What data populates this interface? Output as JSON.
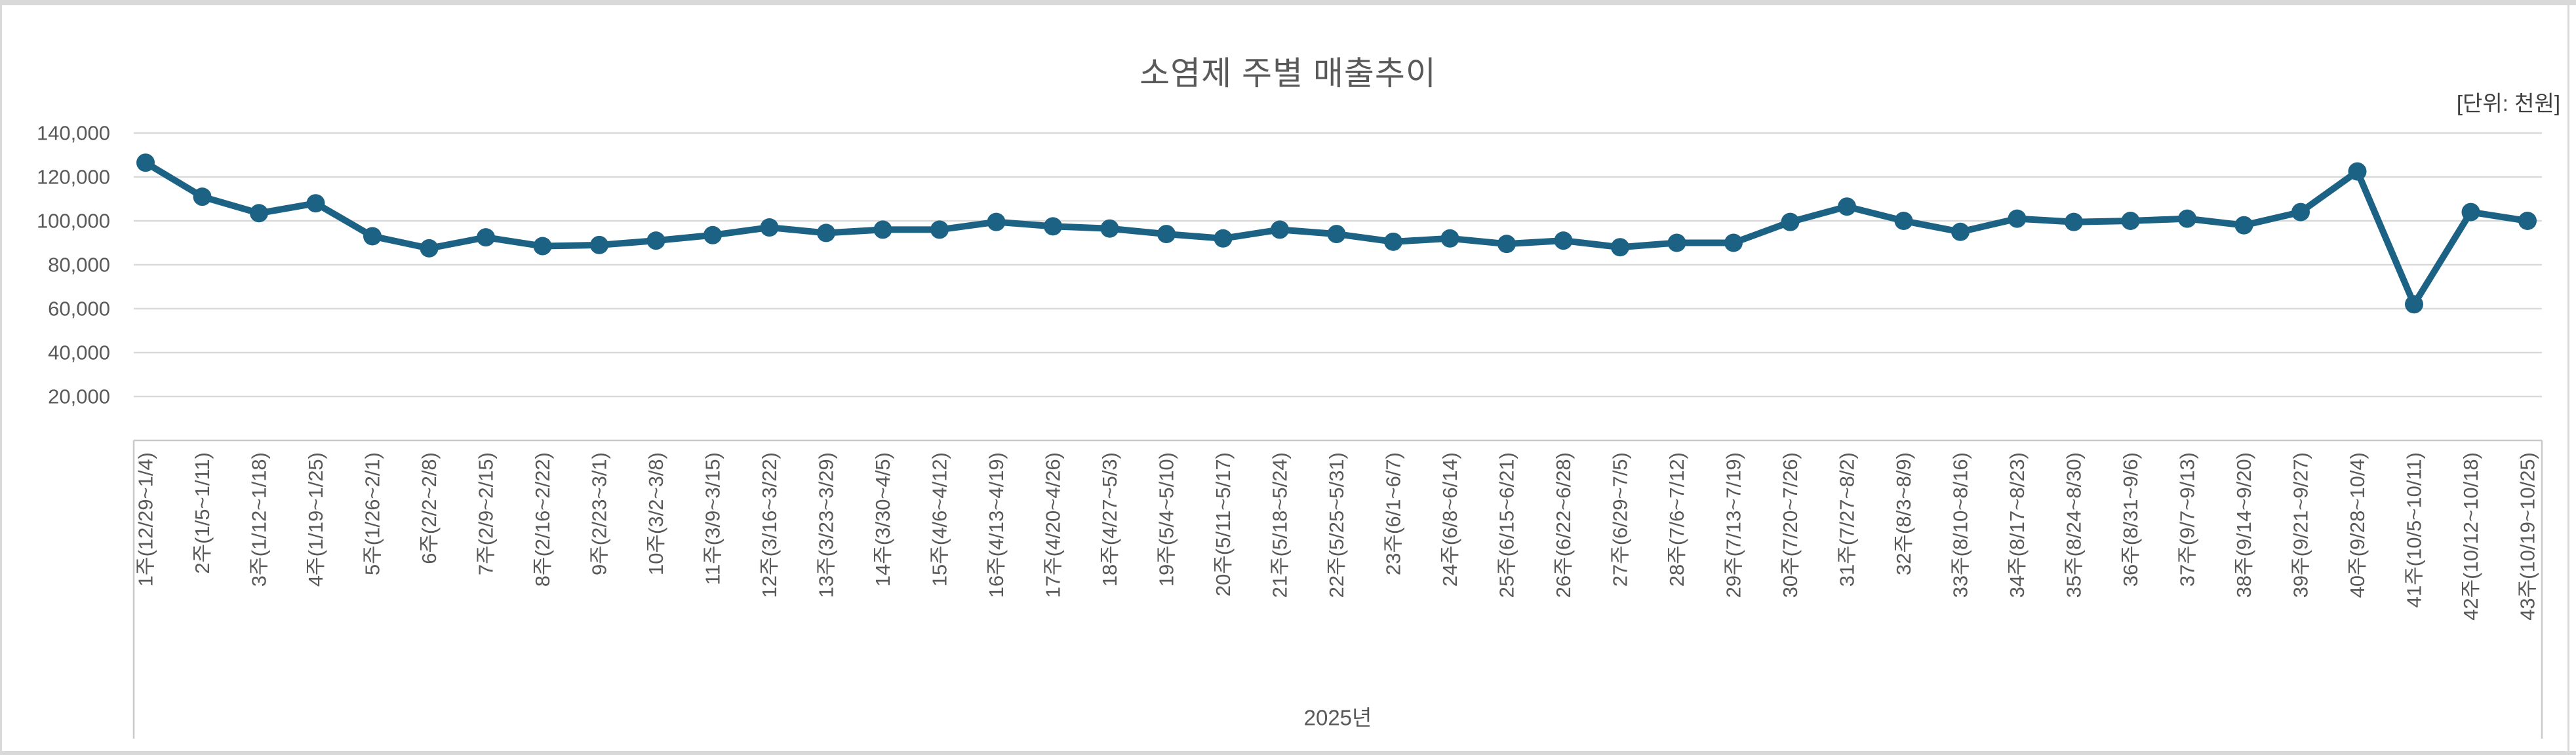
{
  "page": {
    "background": "#ffffff",
    "frame_color": "#d9d9d9"
  },
  "header": {
    "title": "소염제 주별 매출추이",
    "unit_label": "[단위: 천원]"
  },
  "chart_data": {
    "type": "line",
    "title": "소염제 주별 매출추이",
    "unit_note": "[단위: 천원]",
    "x_axis_group_label": "2025년",
    "legend": "none",
    "grid": true,
    "ylim": [
      0,
      150000
    ],
    "grid_range": [
      20000,
      140000
    ],
    "grid_step": 20000,
    "line_color": "#1b6284",
    "grid_color": "#d9d9d9",
    "axis_color": "#c9c9c9",
    "text_color": "#595959",
    "categories": [
      "1주(12/29~1/4)",
      "2주(1/5~1/11)",
      "3주(1/12~1/18)",
      "4주(1/19~1/25)",
      "5주(1/26~2/1)",
      "6주(2/2~2/8)",
      "7주(2/9~2/15)",
      "8주(2/16~2/22)",
      "9주(2/23~3/1)",
      "10주(3/2~3/8)",
      "11주(3/9~3/15)",
      "12주(3/16~3/22)",
      "13주(3/23~3/29)",
      "14주(3/30~4/5)",
      "15주(4/6~4/12)",
      "16주(4/13~4/19)",
      "17주(4/20~4/26)",
      "18주(4/27~5/3)",
      "19주(5/4~5/10)",
      "20주(5/11~5/17)",
      "21주(5/18~5/24)",
      "22주(5/25~5/31)",
      "23주(6/1~6/7)",
      "24주(6/8~6/14)",
      "25주(6/15~6/21)",
      "26주(6/22~6/28)",
      "27주(6/29~7/5)",
      "28주(7/6~7/12)",
      "29주(7/13~7/19)",
      "30주(7/20~7/26)",
      "31주(7/27~8/2)",
      "32주(8/3~8/9)",
      "33주(8/10~8/16)",
      "34주(8/17~8/23)",
      "35주(8/24~8/30)",
      "36주(8/31~9/6)",
      "37주(9/7~9/13)",
      "38주(9/14~9/20)",
      "39주(9/21~9/27)",
      "40주(9/28~10/4)",
      "41주(10/5~10/11)",
      "42주(10/12~10/18)",
      "43주(10/19~10/25)"
    ],
    "values": [
      126500,
      111000,
      103500,
      108000,
      93000,
      87500,
      92500,
      88500,
      89000,
      91000,
      93500,
      97000,
      94500,
      96000,
      96000,
      99500,
      97500,
      96500,
      94000,
      92000,
      96000,
      94000,
      90500,
      92000,
      89500,
      91000,
      88000,
      90000,
      90000,
      99500,
      106500,
      100000,
      95000,
      101000,
      99500,
      100000,
      101000,
      98000,
      104000,
      122500,
      62000,
      104000,
      100000
    ],
    "y_ticks": [
      {
        "value": 20000,
        "label": "20,000"
      },
      {
        "value": 40000,
        "label": "40,000"
      },
      {
        "value": 60000,
        "label": "60,000"
      },
      {
        "value": 80000,
        "label": "80,000"
      },
      {
        "value": 100000,
        "label": "100,000"
      },
      {
        "value": 120000,
        "label": "120,000"
      },
      {
        "value": 140000,
        "label": "140,000"
      }
    ]
  }
}
